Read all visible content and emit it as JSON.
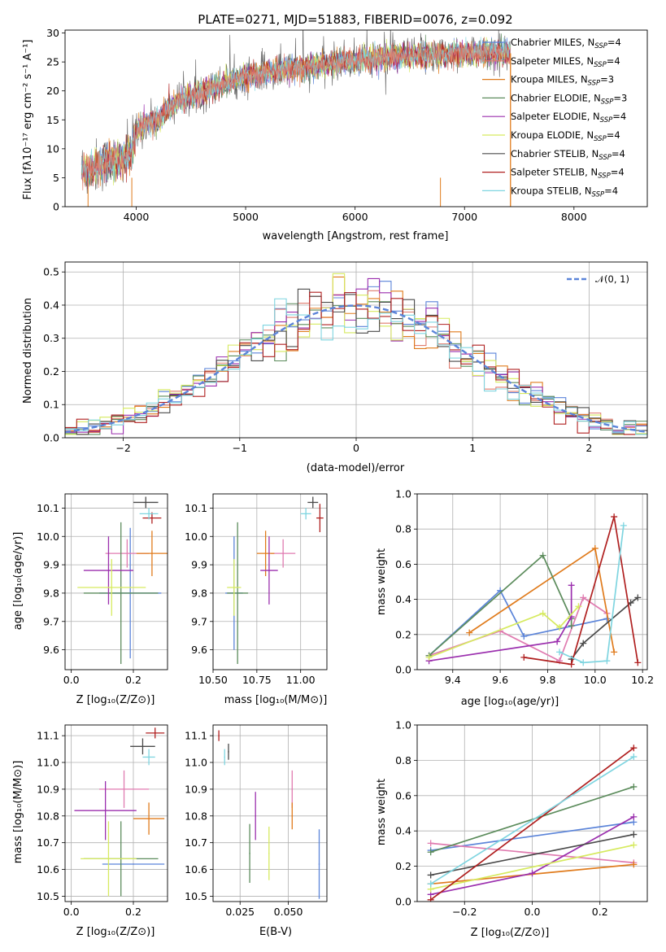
{
  "chart_data": [
    {
      "id": "spectrum",
      "type": "line",
      "title": "PLATE=0271, MJD=51883, FIBERID=0076, z=0.092",
      "xlabel": "wavelength [Angstrom, rest frame]",
      "ylabel": "Flux [fλ10⁻¹⁷ erg cm⁻² s⁻¹ A⁻¹]",
      "xlim": [
        3350,
        8670
      ],
      "ylim": [
        0,
        30.5
      ],
      "xticks": [
        4000,
        5000,
        6000,
        7000,
        8000
      ],
      "yticks": [
        0,
        5,
        10,
        15,
        20,
        25,
        30
      ],
      "grid": false,
      "legend_position": "upper-right",
      "data_gap": [
        7420,
        8670
      ],
      "spectrum_trend": {
        "x": [
          3500,
          3560,
          3620,
          3700,
          3800,
          3900,
          3960,
          4000,
          4100,
          4200,
          4300,
          4400,
          4500,
          4700,
          4900,
          5100,
          5300,
          5500,
          5700,
          5900,
          6100,
          6300,
          6500,
          6700,
          6900,
          7100,
          7300,
          7420
        ],
        "y": [
          6.5,
          6.0,
          6.8,
          7.5,
          8.0,
          8.5,
          9.5,
          13.0,
          14.5,
          15.0,
          17.0,
          18.5,
          19.0,
          20.5,
          22.0,
          23.0,
          23.5,
          24.0,
          24.5,
          25.0,
          25.5,
          25.8,
          26.0,
          26.2,
          26.4,
          26.5,
          26.6,
          26.6
        ]
      },
      "series": [
        {
          "name": "Chabrier MILES, N",
          "sub": "SSP",
          "eq": "=4",
          "color": "#5b84d9"
        },
        {
          "name": "Salpeter MILES, N",
          "sub": "SSP",
          "eq": "=4",
          "color": "#e07b6d"
        },
        {
          "name": "Kroupa MILES, N",
          "sub": "SSP",
          "eq": "=3",
          "color": "#e07b1c"
        },
        {
          "name": "Chabrier ELODIE, N",
          "sub": "SSP",
          "eq": "=3",
          "color": "#5c8c5c"
        },
        {
          "name": "Salpeter ELODIE, N",
          "sub": "SSP",
          "eq": "=4",
          "color": "#9b2fae"
        },
        {
          "name": "Kroupa ELODIE, N",
          "sub": "SSP",
          "eq": "=4",
          "color": "#d6ea5f"
        },
        {
          "name": "Chabrier STELIB, N",
          "sub": "SSP",
          "eq": "=4",
          "color": "#4a4a4a"
        },
        {
          "name": "Salpeter STELIB, N",
          "sub": "SSP",
          "eq": "=4",
          "color": "#b02020"
        },
        {
          "name": "Kroupa STELIB, N",
          "sub": "SSP",
          "eq": "=4",
          "color": "#7fd5e0"
        }
      ]
    },
    {
      "id": "residuals",
      "type": "line",
      "xlabel": "(data-model)/error",
      "ylabel": "Normed distribution",
      "xlim": [
        -2.5,
        2.5
      ],
      "ylim": [
        0,
        0.53
      ],
      "xticks": [
        -2,
        -1,
        0,
        1,
        2
      ],
      "xticklabels": [
        "−2",
        "−1",
        "0",
        "1",
        "2"
      ],
      "yticks": [
        0.0,
        0.1,
        0.2,
        0.3,
        0.4,
        0.5
      ],
      "yticklabels": [
        "0.0",
        "0.1",
        "0.2",
        "0.3",
        "0.4",
        "0.5"
      ],
      "grid": true,
      "legend_position": "upper-right",
      "legend_label": "𝒩(0, 1)",
      "gaussian": {
        "mu": 0,
        "sigma": 1,
        "color": "#5b84d9"
      }
    },
    {
      "id": "z_age",
      "type": "scatter",
      "xlabel": "Z [log₁₀(Z/Z⊙)]",
      "ylabel": "age  [log₁₀(age/yr)]",
      "xlim": [
        -0.02,
        0.31
      ],
      "ylim": [
        9.53,
        10.15
      ],
      "xticks": [
        0.0,
        0.2
      ],
      "xticklabels": [
        "0.0",
        "0.2"
      ],
      "yticks": [
        9.6,
        9.7,
        9.8,
        9.9,
        10.0,
        10.1
      ],
      "yticklabels": [
        "9.6",
        "9.7",
        "9.8",
        "9.9",
        "10.0",
        "10.1"
      ],
      "grid": true,
      "points": [
        {
          "x": 0.19,
          "y": 9.8,
          "xerr": 0.1,
          "yerr": 0.23,
          "color": "#5b84d9"
        },
        {
          "x": 0.18,
          "y": 9.94,
          "xerr": 0.07,
          "yerr": 0.05,
          "color": "#e07bb0"
        },
        {
          "x": 0.26,
          "y": 9.94,
          "xerr": 0.05,
          "yerr": 0.08,
          "color": "#e07b1c"
        },
        {
          "x": 0.16,
          "y": 9.8,
          "xerr": 0.12,
          "yerr": 0.25,
          "color": "#5c8c5c"
        },
        {
          "x": 0.12,
          "y": 9.88,
          "xerr": 0.08,
          "yerr": 0.12,
          "color": "#9b2fae"
        },
        {
          "x": 0.13,
          "y": 9.82,
          "xerr": 0.11,
          "yerr": 0.1,
          "color": "#d6ea5f"
        },
        {
          "x": 0.24,
          "y": 10.12,
          "xerr": 0.04,
          "yerr": 0.02,
          "color": "#4a4a4a"
        },
        {
          "x": 0.26,
          "y": 10.065,
          "xerr": 0.03,
          "yerr": 0.02,
          "color": "#b02020"
        },
        {
          "x": 0.25,
          "y": 10.08,
          "xerr": 0.03,
          "yerr": 0.02,
          "color": "#7fd5e0"
        }
      ]
    },
    {
      "id": "mass_age",
      "type": "scatter",
      "xlabel": "mass [log₁₀(M/M⊙)]",
      "ylabel": "",
      "xlim": [
        10.5,
        11.15
      ],
      "ylim": [
        9.53,
        10.15
      ],
      "xticks": [
        10.5,
        10.75,
        11.0
      ],
      "xticklabels": [
        "10.50",
        "10.75",
        "11.00"
      ],
      "yticks": [
        9.6,
        9.7,
        9.8,
        9.9,
        10.0,
        10.1
      ],
      "yticklabels": [
        "9.6",
        "9.7",
        "9.8",
        "9.9",
        "10.0",
        "10.1"
      ],
      "grid": true,
      "points": [
        {
          "x": 10.62,
          "y": 9.8,
          "xerr": 0.05,
          "yerr": 0.2,
          "color": "#5b84d9"
        },
        {
          "x": 10.9,
          "y": 9.94,
          "xerr": 0.07,
          "yerr": 0.05,
          "color": "#e07bb0"
        },
        {
          "x": 10.8,
          "y": 9.94,
          "xerr": 0.05,
          "yerr": 0.08,
          "color": "#e07b1c"
        },
        {
          "x": 10.64,
          "y": 9.8,
          "xerr": 0.06,
          "yerr": 0.25,
          "color": "#5c8c5c"
        },
        {
          "x": 10.82,
          "y": 9.88,
          "xerr": 0.05,
          "yerr": 0.12,
          "color": "#9b2fae"
        },
        {
          "x": 10.62,
          "y": 9.82,
          "xerr": 0.04,
          "yerr": 0.1,
          "color": "#d6ea5f"
        },
        {
          "x": 11.07,
          "y": 10.12,
          "xerr": 0.03,
          "yerr": 0.02,
          "color": "#4a4a4a"
        },
        {
          "x": 11.11,
          "y": 10.065,
          "xerr": 0.02,
          "yerr": 0.05,
          "color": "#b02020"
        },
        {
          "x": 11.03,
          "y": 10.08,
          "xerr": 0.03,
          "yerr": 0.02,
          "color": "#7fd5e0"
        }
      ]
    },
    {
      "id": "age_weight",
      "type": "line",
      "xlabel": "age  [log₁₀(age/yr)]",
      "ylabel": "mass weight",
      "xlim": [
        9.25,
        10.22
      ],
      "ylim": [
        0,
        1
      ],
      "xticks": [
        9.4,
        9.6,
        9.8,
        10.0,
        10.2
      ],
      "xticklabels": [
        "9.4",
        "9.6",
        "9.8",
        "10.0",
        "10.2"
      ],
      "yticks": [
        0.0,
        0.2,
        0.4,
        0.6,
        0.8,
        1.0
      ],
      "yticklabels": [
        "0.0",
        "0.2",
        "0.4",
        "0.6",
        "0.8",
        "1.0"
      ],
      "grid": true,
      "series": [
        {
          "color": "#5b84d9",
          "x": [
            9.3,
            9.6,
            9.7,
            10.05
          ],
          "y": [
            0.08,
            0.45,
            0.19,
            0.29
          ]
        },
        {
          "color": "#e07bb0",
          "x": [
            9.3,
            9.6,
            9.85,
            9.95,
            10.05
          ],
          "y": [
            0.08,
            0.22,
            0.05,
            0.41,
            0.32
          ]
        },
        {
          "color": "#e07b1c",
          "x": [
            9.47,
            10.0,
            10.08
          ],
          "y": [
            0.21,
            0.69,
            0.1
          ]
        },
        {
          "color": "#5c8c5c",
          "x": [
            9.3,
            9.78,
            9.9,
            9.9
          ],
          "y": [
            0.08,
            0.65,
            0.29,
            0.25
          ]
        },
        {
          "color": "#9b2fae",
          "x": [
            9.3,
            9.84,
            9.9,
            9.9
          ],
          "y": [
            0.05,
            0.16,
            0.3,
            0.48
          ]
        },
        {
          "color": "#d6ea5f",
          "x": [
            9.3,
            9.78,
            9.85,
            9.93
          ],
          "y": [
            0.07,
            0.32,
            0.24,
            0.36
          ]
        },
        {
          "color": "#4a4a4a",
          "x": [
            9.9,
            9.95,
            10.15,
            10.18
          ],
          "y": [
            0.06,
            0.15,
            0.38,
            0.41
          ]
        },
        {
          "color": "#b02020",
          "x": [
            9.7,
            9.9,
            10.08,
            10.18
          ],
          "y": [
            0.07,
            0.03,
            0.87,
            0.04
          ]
        },
        {
          "color": "#7fd5e0",
          "x": [
            9.85,
            9.95,
            10.05,
            10.12
          ],
          "y": [
            0.1,
            0.04,
            0.05,
            0.82
          ]
        }
      ]
    },
    {
      "id": "z_mass",
      "type": "scatter",
      "xlabel": "Z [log₁₀(Z/Z⊙)]",
      "ylabel": "mass [log₁₀(M/M⊙)]",
      "xlim": [
        -0.02,
        0.31
      ],
      "ylim": [
        10.48,
        11.14
      ],
      "xticks": [
        0.0,
        0.2
      ],
      "xticklabels": [
        "0.0",
        "0.2"
      ],
      "yticks": [
        10.5,
        10.6,
        10.7,
        10.8,
        10.9,
        11.0,
        11.1
      ],
      "yticklabels": [
        "10.5",
        "10.6",
        "10.7",
        "10.8",
        "10.9",
        "11.0",
        "11.1"
      ],
      "grid": true,
      "points": [
        {
          "x": 0.2,
          "y": 10.62,
          "xerr": 0.1,
          "yerr": 0.0,
          "color": "#5b84d9"
        },
        {
          "x": 0.17,
          "y": 10.9,
          "xerr": 0.08,
          "yerr": 0.07,
          "color": "#e07bb0"
        },
        {
          "x": 0.25,
          "y": 10.79,
          "xerr": 0.05,
          "yerr": 0.06,
          "color": "#e07b1c"
        },
        {
          "x": 0.16,
          "y": 10.64,
          "xerr": 0.12,
          "yerr": 0.14,
          "color": "#5c8c5c"
        },
        {
          "x": 0.11,
          "y": 10.82,
          "xerr": 0.1,
          "yerr": 0.11,
          "color": "#9b2fae"
        },
        {
          "x": 0.12,
          "y": 10.64,
          "xerr": 0.09,
          "yerr": 0.14,
          "color": "#d6ea5f"
        },
        {
          "x": 0.23,
          "y": 11.06,
          "xerr": 0.04,
          "yerr": 0.03,
          "color": "#4a4a4a"
        },
        {
          "x": 0.27,
          "y": 11.11,
          "xerr": 0.03,
          "yerr": 0.02,
          "color": "#b02020"
        },
        {
          "x": 0.25,
          "y": 11.02,
          "xerr": 0.02,
          "yerr": 0.03,
          "color": "#7fd5e0"
        }
      ]
    },
    {
      "id": "ebv_mass",
      "type": "scatter",
      "xlabel": "E(B-V)",
      "ylabel": "",
      "xlim": [
        0.011,
        0.07
      ],
      "ylim": [
        10.48,
        11.14
      ],
      "xticks": [
        0.025,
        0.05
      ],
      "xticklabels": [
        "0.025",
        "0.050"
      ],
      "yticks": [
        10.5,
        10.6,
        10.7,
        10.8,
        10.9,
        11.0,
        11.1
      ],
      "yticklabels": [
        "10.5",
        "10.6",
        "10.7",
        "10.8",
        "10.9",
        "11.0",
        "11.1"
      ],
      "grid": true,
      "points": [
        {
          "x": 0.066,
          "y": 10.62,
          "xerr": 0,
          "yerr": 0.13,
          "color": "#5b84d9"
        },
        {
          "x": 0.052,
          "y": 10.9,
          "xerr": 0,
          "yerr": 0.07,
          "color": "#e07bb0"
        },
        {
          "x": 0.052,
          "y": 10.8,
          "xerr": 0,
          "yerr": 0.05,
          "color": "#e07b1c"
        },
        {
          "x": 0.03,
          "y": 10.66,
          "xerr": 0,
          "yerr": 0.11,
          "color": "#5c8c5c"
        },
        {
          "x": 0.033,
          "y": 10.8,
          "xerr": 0,
          "yerr": 0.09,
          "color": "#9b2fae"
        },
        {
          "x": 0.04,
          "y": 10.66,
          "xerr": 0,
          "yerr": 0.1,
          "color": "#d6ea5f"
        },
        {
          "x": 0.019,
          "y": 11.04,
          "xerr": 0,
          "yerr": 0.03,
          "color": "#4a4a4a"
        },
        {
          "x": 0.014,
          "y": 11.1,
          "xerr": 0,
          "yerr": 0.02,
          "color": "#b02020"
        },
        {
          "x": 0.017,
          "y": 11.02,
          "xerr": 0,
          "yerr": 0.03,
          "color": "#7fd5e0"
        }
      ]
    },
    {
      "id": "z_weight",
      "type": "line",
      "xlabel": "Z [log₁₀(Z/Z⊙)]",
      "ylabel": "mass weight",
      "xlim": [
        -0.34,
        0.34
      ],
      "ylim": [
        0,
        1
      ],
      "xticks": [
        -0.2,
        0.0,
        0.2
      ],
      "xticklabels": [
        "−0.2",
        "0.0",
        "0.2"
      ],
      "yticks": [
        0.0,
        0.2,
        0.4,
        0.6,
        0.8,
        1.0
      ],
      "yticklabels": [
        "0.0",
        "0.2",
        "0.4",
        "0.6",
        "0.8",
        "1.0"
      ],
      "grid": true,
      "series": [
        {
          "color": "#5b84d9",
          "x": [
            -0.3,
            0.3
          ],
          "y": [
            0.29,
            0.45
          ]
        },
        {
          "color": "#e07bb0",
          "x": [
            -0.3,
            0.3
          ],
          "y": [
            0.33,
            0.22
          ]
        },
        {
          "color": "#e07b1c",
          "x": [
            -0.3,
            0.3
          ],
          "y": [
            0.1,
            0.21
          ]
        },
        {
          "color": "#5c8c5c",
          "x": [
            -0.3,
            0.3
          ],
          "y": [
            0.28,
            0.65
          ]
        },
        {
          "color": "#9b2fae",
          "x": [
            -0.3,
            0.0,
            0.3
          ],
          "y": [
            0.04,
            0.16,
            0.48
          ]
        },
        {
          "color": "#d6ea5f",
          "x": [
            -0.3,
            0.3
          ],
          "y": [
            0.07,
            0.32
          ]
        },
        {
          "color": "#4a4a4a",
          "x": [
            -0.3,
            0.3
          ],
          "y": [
            0.15,
            0.38
          ]
        },
        {
          "color": "#b02020",
          "x": [
            -0.3,
            0.3
          ],
          "y": [
            0.01,
            0.87
          ]
        },
        {
          "color": "#7fd5e0",
          "x": [
            -0.3,
            0.3
          ],
          "y": [
            0.1,
            0.82
          ]
        }
      ]
    }
  ]
}
